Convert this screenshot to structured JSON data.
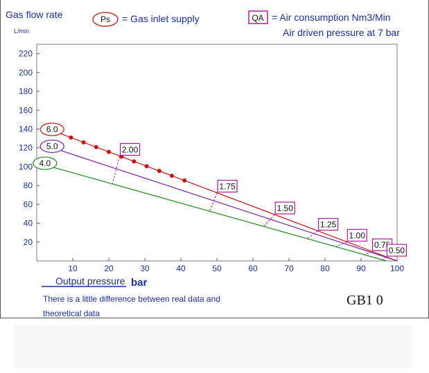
{
  "title": "Gas flow rate",
  "y_unit": "L/min",
  "legend_ps": {
    "symbol": "Ps",
    "desc": "= Gas inlet supply",
    "color": "#c0392b"
  },
  "legend_qa": {
    "symbol": "QA",
    "desc": "= Air consumption Nm3/Min",
    "color": "#b5179e"
  },
  "subtitle": "Air driven pressure at 7 bar",
  "xlabel": "Output pressure",
  "xunit": "bar",
  "note_line1": "There is a little difference between real data and",
  "note_line2": "theoretical data",
  "model": "GB1 0",
  "chart_data": {
    "type": "line",
    "xlim": [
      0,
      100
    ],
    "ylim": [
      0,
      230
    ],
    "xticks": [
      10,
      20,
      30,
      40,
      50,
      60,
      70,
      80,
      90,
      100
    ],
    "yticks": [
      20,
      40,
      60,
      80,
      100,
      120,
      140,
      160,
      180,
      200,
      220
    ],
    "grid": false,
    "series": [
      {
        "name": "6.0",
        "color": "#cc1111",
        "x": [
          6,
          100
        ],
        "y": [
          136,
          0
        ],
        "markers_x": [
          6,
          9.5,
          13,
          16.5,
          20,
          23.5,
          27,
          30.5,
          34,
          37.5,
          41
        ]
      },
      {
        "name": "5.0",
        "color": "#7a1fa2",
        "x": [
          6,
          100
        ],
        "y": [
          118,
          0
        ]
      },
      {
        "name": "4.0",
        "color": "#1b8a1b",
        "x": [
          4,
          97
        ],
        "y": [
          100,
          0
        ]
      }
    ],
    "air_consumption": [
      {
        "label": "2.00",
        "x_high": 23,
        "x_low": 21
      },
      {
        "label": "1.75",
        "x_high": 50,
        "x_low": 48
      },
      {
        "label": "1.50",
        "x_high": 66,
        "x_low": 63
      },
      {
        "label": "1.25",
        "x_high": 78,
        "x_low": 75
      },
      {
        "label": "1.00",
        "x_high": 86,
        "x_low": 83
      },
      {
        "label": "0.75",
        "x_high": 93,
        "x_low": 91
      },
      {
        "label": "0.50",
        "x_high": 97,
        "x_low": 96
      }
    ]
  }
}
